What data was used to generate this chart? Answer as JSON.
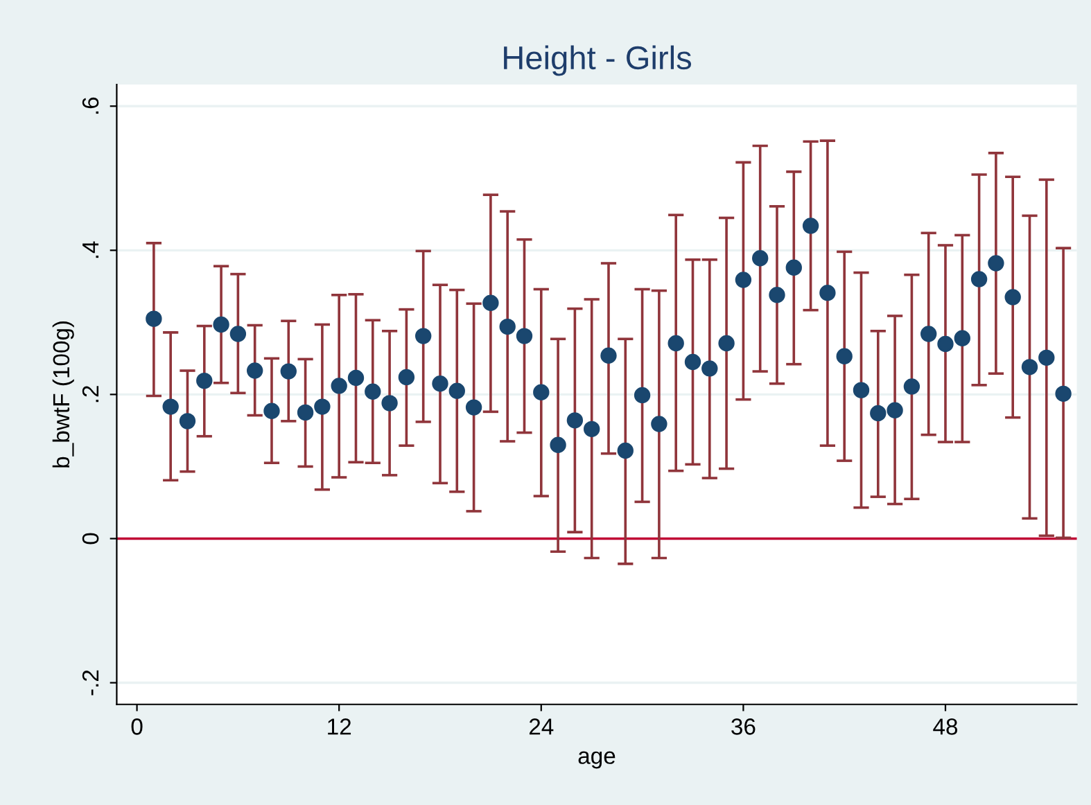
{
  "chart_data": {
    "type": "scatter",
    "title": "Height - Girls",
    "xlabel": "age",
    "ylabel": "b_bwtF (100g)",
    "x": [
      1,
      2,
      3,
      4,
      5,
      6,
      7,
      8,
      9,
      10,
      11,
      12,
      13,
      14,
      15,
      16,
      17,
      18,
      19,
      20,
      21,
      22,
      23,
      24,
      25,
      26,
      27,
      28,
      29,
      30,
      31,
      32,
      33,
      34,
      35,
      36,
      37,
      38,
      39,
      40,
      41,
      42,
      43,
      44,
      45,
      46,
      47,
      48,
      49,
      50,
      51,
      52,
      53,
      54,
      55
    ],
    "series": [
      {
        "color": "#1a476f",
        "values": [
          0.305,
          0.183,
          0.163,
          0.219,
          0.297,
          0.284,
          0.233,
          0.177,
          0.232,
          0.175,
          0.183,
          0.212,
          0.223,
          0.204,
          0.188,
          0.224,
          0.281,
          0.215,
          0.205,
          0.182,
          0.327,
          0.294,
          0.281,
          0.203,
          0.13,
          0.164,
          0.152,
          0.254,
          0.122,
          0.199,
          0.159,
          0.271,
          0.245,
          0.236,
          0.271,
          0.359,
          0.389,
          0.338,
          0.376,
          0.434,
          0.341,
          0.253,
          0.206,
          0.174,
          0.178,
          0.211,
          0.284,
          0.27,
          0.278,
          0.36,
          0.382,
          0.335,
          0.238,
          0.251,
          0.201
        ],
        "errors": [
          [
            0.198,
            0.41
          ],
          [
            0.081,
            0.286
          ],
          [
            0.093,
            0.233
          ],
          [
            0.142,
            0.295
          ],
          [
            0.216,
            0.378
          ],
          [
            0.202,
            0.367
          ],
          [
            0.171,
            0.296
          ],
          [
            0.105,
            0.25
          ],
          [
            0.163,
            0.302
          ],
          [
            0.1,
            0.249
          ],
          [
            0.068,
            0.297
          ],
          [
            0.085,
            0.338
          ],
          [
            0.106,
            0.339
          ],
          [
            0.105,
            0.303
          ],
          [
            0.088,
            0.288
          ],
          [
            0.129,
            0.318
          ],
          [
            0.162,
            0.399
          ],
          [
            0.077,
            0.352
          ],
          [
            0.065,
            0.345
          ],
          [
            0.038,
            0.326
          ],
          [
            0.176,
            0.477
          ],
          [
            0.135,
            0.454
          ],
          [
            0.147,
            0.415
          ],
          [
            0.059,
            0.346
          ],
          [
            -0.018,
            0.277
          ],
          [
            0.009,
            0.319
          ],
          [
            -0.027,
            0.332
          ],
          [
            0.118,
            0.382
          ],
          [
            -0.035,
            0.277
          ],
          [
            0.051,
            0.346
          ],
          [
            -0.027,
            0.344
          ],
          [
            0.094,
            0.449
          ],
          [
            0.103,
            0.387
          ],
          [
            0.084,
            0.387
          ],
          [
            0.097,
            0.445
          ],
          [
            0.193,
            0.522
          ],
          [
            0.232,
            0.545
          ],
          [
            0.215,
            0.461
          ],
          [
            0.242,
            0.509
          ],
          [
            0.317,
            0.551
          ],
          [
            0.129,
            0.552
          ],
          [
            0.108,
            0.398
          ],
          [
            0.043,
            0.369
          ],
          [
            0.058,
            0.288
          ],
          [
            0.048,
            0.309
          ],
          [
            0.055,
            0.366
          ],
          [
            0.144,
            0.424
          ],
          [
            0.134,
            0.407
          ],
          [
            0.134,
            0.421
          ],
          [
            0.213,
            0.505
          ],
          [
            0.229,
            0.535
          ],
          [
            0.168,
            0.502
          ],
          [
            0.028,
            0.448
          ],
          [
            0.004,
            0.498
          ],
          [
            0.001,
            0.403
          ]
        ]
      }
    ],
    "xlim": [
      -1.2,
      55.8
    ],
    "ylim": [
      -0.23,
      0.63
    ],
    "xticks": [
      0,
      12,
      24,
      36,
      48
    ],
    "yticks": [
      {
        "value": -0.2,
        "label": "-.2"
      },
      0,
      {
        "value": 0.2,
        "label": ".2"
      },
      {
        "value": 0.4,
        "label": ".4"
      },
      {
        "value": 0.6,
        "label": ".6"
      }
    ],
    "ref_lines": [
      {
        "axis": "y",
        "value": 0,
        "color": "#c10534"
      }
    ],
    "grid": "y",
    "marker": "circle",
    "legend": false
  }
}
